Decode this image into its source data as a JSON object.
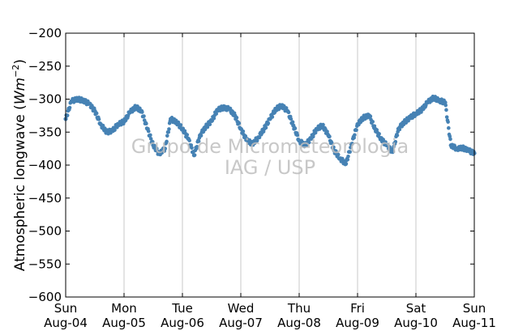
{
  "chart_data": {
    "type": "scatter",
    "title": "",
    "ylabel": "Atmospheric longwave",
    "ylabel_unit": "Wm",
    "ylabel_unit_exp": "−2",
    "ylim": [
      -600,
      -200
    ],
    "yticks": [
      -200,
      -250,
      -300,
      -350,
      -400,
      -450,
      -500,
      -550,
      -600
    ],
    "ytick_labels": [
      "−200",
      "−250",
      "−300",
      "−350",
      "−400",
      "−450",
      "−500",
      "−550",
      "−600"
    ],
    "xlim": [
      "2014-08-04",
      "2014-08-11"
    ],
    "xticks": [
      {
        "day": "Sun",
        "date": "Aug-04"
      },
      {
        "day": "Mon",
        "date": "Aug-05"
      },
      {
        "day": "Tue",
        "date": "Aug-06"
      },
      {
        "day": "Wed",
        "date": "Aug-07"
      },
      {
        "day": "Thu",
        "date": "Aug-08"
      },
      {
        "day": "Fri",
        "date": "Aug-09"
      },
      {
        "day": "Sat",
        "date": "Aug-10"
      },
      {
        "day": "Sun",
        "date": "Aug-11"
      }
    ],
    "grid": "vertical",
    "point_color": "#4682b4",
    "series": [
      {
        "x_days": [
          0.0,
          0.1,
          0.2,
          0.3,
          0.4,
          0.5,
          0.6,
          0.7,
          0.8,
          0.9,
          1.0,
          1.1,
          1.2,
          1.3,
          1.4,
          1.5,
          1.6,
          1.7,
          1.8,
          1.9,
          2.0,
          2.1,
          2.2,
          2.3,
          2.4,
          2.5,
          2.6,
          2.7,
          2.8,
          2.9,
          3.0,
          3.1,
          3.2,
          3.3,
          3.4,
          3.5,
          3.6,
          3.7,
          3.8,
          3.9,
          4.0,
          4.1,
          4.2,
          4.3,
          4.4,
          4.5,
          4.6,
          4.7,
          4.8,
          4.9,
          5.0,
          5.1,
          5.2,
          5.3,
          5.4,
          5.5,
          5.6,
          5.7,
          5.8,
          5.9,
          6.0,
          6.1,
          6.2,
          6.3,
          6.4,
          6.5,
          6.6,
          6.7,
          6.8,
          6.9,
          7.0
        ],
        "y": [
          -330,
          -303,
          -300,
          -302,
          -307,
          -318,
          -338,
          -350,
          -348,
          -338,
          -334,
          -320,
          -312,
          -318,
          -345,
          -370,
          -383,
          -375,
          -330,
          -335,
          -345,
          -360,
          -385,
          -355,
          -342,
          -333,
          -316,
          -313,
          -315,
          -325,
          -345,
          -362,
          -368,
          -358,
          -345,
          -330,
          -315,
          -310,
          -318,
          -340,
          -363,
          -370,
          -360,
          -345,
          -340,
          -355,
          -378,
          -390,
          -398,
          -368,
          -338,
          -328,
          -325,
          -345,
          -360,
          -370,
          -380,
          -345,
          -335,
          -328,
          -322,
          -316,
          -305,
          -298,
          -302,
          -305,
          -370,
          -375,
          -374,
          -378,
          -382
        ]
      }
    ],
    "annotation_line1": "Grupo de Micrometeorologia",
    "annotation_line2": "IAG / USP"
  }
}
